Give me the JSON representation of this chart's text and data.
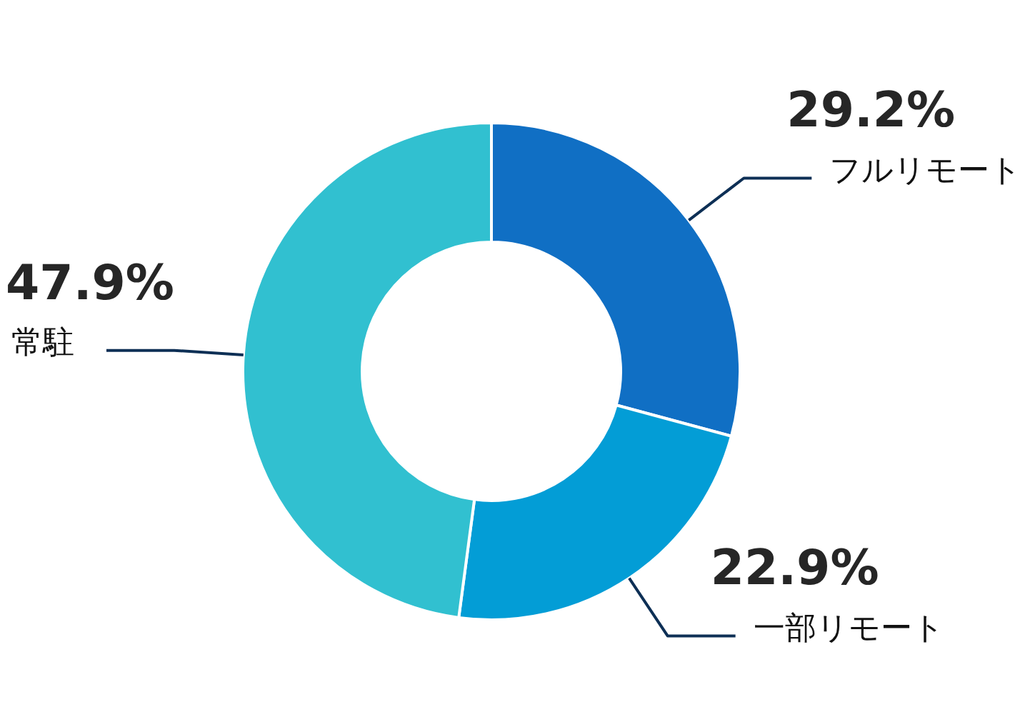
{
  "chart_data": {
    "type": "donut",
    "categories": [
      "フルリモート",
      "一部リモート",
      "常駐"
    ],
    "values": [
      29.2,
      22.9,
      47.9
    ],
    "colors": [
      "#106fc4",
      "#039dd6",
      "#31c0d0"
    ],
    "value_labels": [
      "29.2%",
      "22.9%",
      "47.9%"
    ],
    "legend": false
  }
}
